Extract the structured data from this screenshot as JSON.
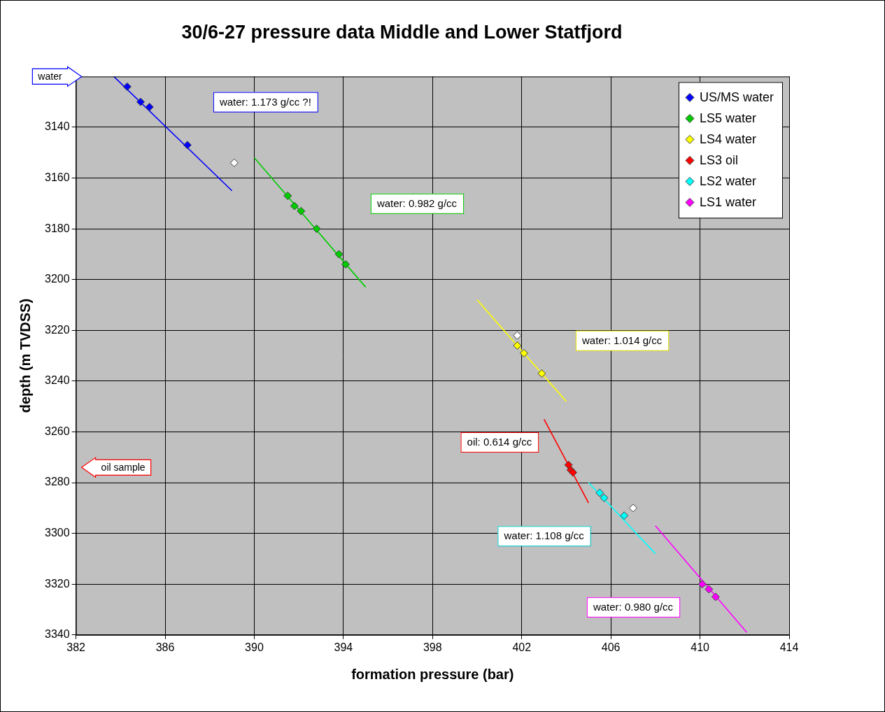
{
  "chart_data": {
    "type": "scatter",
    "title": "30/6-27 pressure data Middle and Lower Statfjord",
    "x_label": "formation pressure (bar)",
    "y_label": "depth (m TVDSS)",
    "xlim": [
      382,
      414
    ],
    "xticks": [
      382,
      386,
      390,
      394,
      398,
      402,
      406,
      410,
      414
    ],
    "ylim": [
      3340,
      3120
    ],
    "yticks": [
      3140,
      3160,
      3180,
      3200,
      3220,
      3240,
      3260,
      3280,
      3300,
      3320,
      3340
    ],
    "grid": true,
    "legend": "top-right",
    "marker": "diamond",
    "series": [
      {
        "name": "US/MS water",
        "color": "#0000ff",
        "x": [
          384.3,
          384.9,
          385.3,
          387.0
        ],
        "values": [
          3124,
          3130,
          3132,
          3147
        ],
        "line_x": [
          383.7,
          389.0
        ],
        "line_y": [
          3120,
          3165
        ]
      },
      {
        "name": "LS5 water",
        "color": "#00cc00",
        "x": [
          391.5,
          391.8,
          392.1,
          392.8,
          393.8,
          394.1
        ],
        "values": [
          3167,
          3171,
          3173,
          3180,
          3190,
          3194
        ],
        "line_x": [
          390.0,
          395.0
        ],
        "line_y": [
          3152,
          3203
        ]
      },
      {
        "name": "LS4 water",
        "color": "#ffff00",
        "x": [
          401.8,
          402.1,
          402.9
        ],
        "values": [
          3226,
          3229,
          3237
        ],
        "line_x": [
          400.0,
          404.0
        ],
        "line_y": [
          3208,
          3248
        ]
      },
      {
        "name": "LS3 oil",
        "color": "#ff0000",
        "x": [
          404.1,
          404.2,
          404.3
        ],
        "values": [
          3273,
          3275,
          3276
        ],
        "line_x": [
          403.0,
          405.0
        ],
        "line_y": [
          3255,
          3288
        ]
      },
      {
        "name": "LS2 water",
        "color": "#00ffff",
        "x": [
          405.5,
          405.7,
          406.6
        ],
        "values": [
          3284,
          3286,
          3293
        ],
        "line_x": [
          405.0,
          408.0
        ],
        "line_y": [
          3280,
          3308
        ]
      },
      {
        "name": "LS1 water",
        "color": "#ff00ff",
        "x": [
          410.1,
          410.4,
          410.7
        ],
        "values": [
          3320,
          3322,
          3325
        ],
        "line_x": [
          408.0,
          412.1
        ],
        "line_y": [
          3297,
          3339
        ]
      },
      {
        "color": "#ffffff",
        "x": [
          389.1,
          401.8,
          407.0
        ],
        "values": [
          3154,
          3222,
          3290
        ]
      }
    ],
    "annotations": [
      {
        "text": "water: 1.173 g/cc ?!",
        "x": 390.5,
        "y": 3130,
        "color": "#0000ff"
      },
      {
        "text": "water: 0.982 g/cc",
        "x": 397.3,
        "y": 3170,
        "color": "#00cc00"
      },
      {
        "text": "water: 1.014 g/cc",
        "x": 406.5,
        "y": 3224,
        "color": "#e6e600"
      },
      {
        "text": "oil: 0.614 g/cc",
        "x": 401.0,
        "y": 3264,
        "color": "#ff0000"
      },
      {
        "text": "water: 1.108 g/cc",
        "x": 403.0,
        "y": 3301,
        "color": "#00cccc"
      },
      {
        "text": "water: 0.980 g/cc",
        "x": 407.0,
        "y": 3329,
        "color": "#ff00ff"
      }
    ],
    "arrows": [
      {
        "text": "water",
        "y": 3120,
        "direction": "right",
        "color": "#0000ff"
      },
      {
        "text": "oil sample",
        "y": 3274,
        "direction": "left",
        "color": "#ff0000"
      }
    ]
  }
}
